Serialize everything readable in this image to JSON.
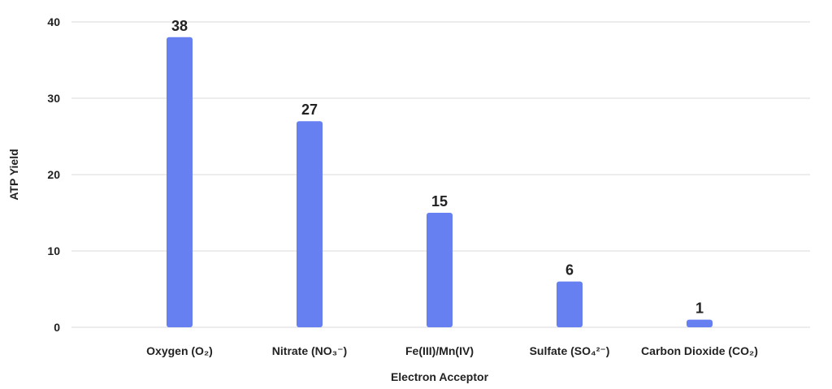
{
  "chart_data": {
    "type": "bar",
    "title": "",
    "xlabel": "Electron Acceptor",
    "ylabel": "ATP Yield",
    "categories": [
      "Oxygen (O₂)",
      "Nitrate (NO₃⁻)",
      "Fe(III)/Mn(IV)",
      "Sulfate (SO₄²⁻)",
      "Carbon Dioxide (CO₂)"
    ],
    "values": [
      38,
      27,
      15,
      6,
      1
    ],
    "ylim": [
      0,
      40
    ],
    "yticks": [
      0,
      10,
      20,
      30,
      40
    ],
    "grid": true,
    "legend": "none",
    "data_labels": true,
    "colors": {
      "bar": "#6680f2",
      "grid": "#d9d9d9",
      "text": "#222222"
    }
  }
}
